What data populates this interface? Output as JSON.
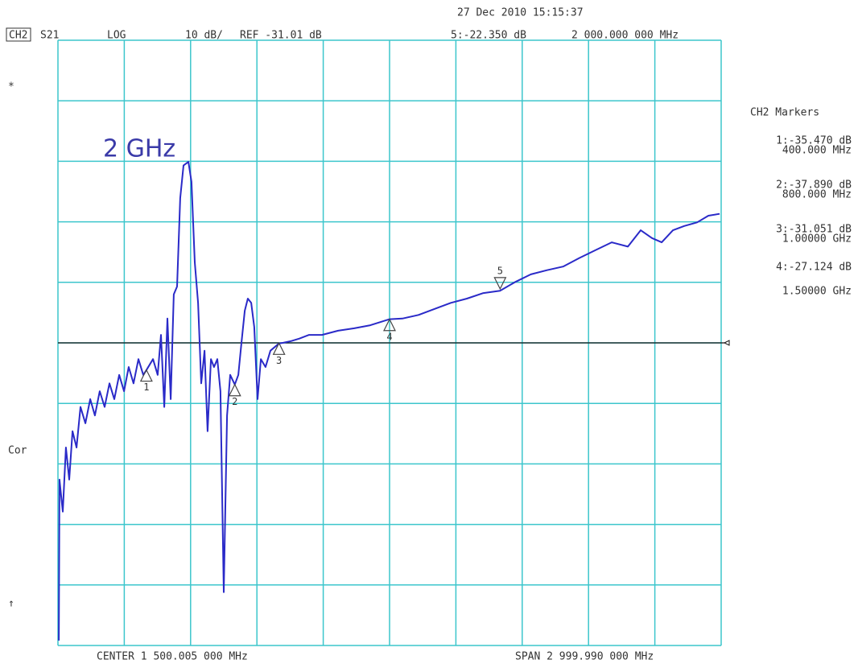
{
  "chart_data": {
    "type": "line",
    "date_time": "27 Dec 2010  15:15:37",
    "channel": "CH2",
    "parameter": "S21",
    "format": "LOG",
    "scale_label": "10 dB/",
    "reference": {
      "value": -31.01,
      "label": "REF -31.01 dB"
    },
    "center_label": "CENTER 1 500.005 000 MHz",
    "span_label": "SPAN 2 999.990 000 MHz",
    "markers_title": "CH2 Markers",
    "annotation": "2 GHz",
    "side_labels": [
      "*",
      "Cor",
      "↑"
    ],
    "grid": true,
    "color": "#2a2ac8",
    "xlim": [
      0.01,
      3000
    ],
    "ylim": [
      -81.01,
      18.99
    ],
    "x": [
      4,
      7,
      22,
      36,
      51,
      66,
      84,
      102,
      124,
      146,
      167,
      189,
      211,
      233,
      255,
      277,
      299,
      320,
      342,
      364,
      386,
      400,
      430,
      451,
      466,
      481,
      495,
      510,
      524,
      539,
      553,
      568,
      590,
      604,
      619,
      634,
      648,
      663,
      677,
      692,
      706,
      721,
      735,
      750,
      765,
      779,
      800,
      816,
      830,
      845,
      859,
      874,
      888,
      903,
      918,
      939,
      961,
      1000,
      1019,
      1056,
      1092,
      1136,
      1194,
      1267,
      1340,
      1413,
      1500,
      1558,
      1631,
      1704,
      1777,
      1850,
      1922,
      2000,
      2066,
      2139,
      2212,
      2285,
      2358,
      2431,
      2505,
      2578,
      2636,
      2687,
      2731,
      2782,
      2833,
      2891,
      2942,
      2993
    ],
    "values": [
      -80.2,
      -53.6,
      -58.9,
      -48.3,
      -53.6,
      -45.6,
      -48.3,
      -41.6,
      -44.3,
      -40.3,
      -43.0,
      -39.0,
      -41.6,
      -37.7,
      -40.3,
      -36.3,
      -39.0,
      -35.0,
      -37.7,
      -33.7,
      -36.3,
      -35.5,
      -33.7,
      -36.3,
      -29.7,
      -41.6,
      -27.0,
      -40.3,
      -23.0,
      -21.7,
      -7.1,
      -1.7,
      -1.1,
      -4.4,
      -17.7,
      -24.4,
      -37.7,
      -32.3,
      -45.6,
      -33.7,
      -35.0,
      -33.7,
      -39.0,
      -72.2,
      -43.0,
      -36.3,
      -37.9,
      -36.3,
      -31.0,
      -25.7,
      -23.7,
      -24.4,
      -28.4,
      -40.3,
      -33.7,
      -35.0,
      -32.3,
      -31.1,
      -31.0,
      -30.7,
      -30.3,
      -29.7,
      -29.7,
      -29.0,
      -28.6,
      -28.1,
      -27.1,
      -27.0,
      -26.4,
      -25.4,
      -24.4,
      -23.7,
      -22.8,
      -22.4,
      -21.0,
      -19.7,
      -19.0,
      -18.4,
      -17.0,
      -15.7,
      -14.4,
      -15.1,
      -12.4,
      -13.7,
      -14.4,
      -12.4,
      -11.7,
      -11.1,
      -10.0,
      -9.7
    ],
    "markers": [
      {
        "label": "1",
        "x": 400,
        "y": -35.47,
        "readout": "1:-35.470 dB",
        "freq": "400.000 MHz"
      },
      {
        "label": "2",
        "x": 800,
        "y": -37.89,
        "readout": "2:-37.890 dB",
        "freq": "800.000 MHz"
      },
      {
        "label": "3",
        "x": 1000,
        "y": -31.051,
        "readout": "3:-31.051 dB",
        "freq": "1.00000 GHz"
      },
      {
        "label": "4",
        "x": 1500,
        "y": -27.124,
        "readout": "4:-27.124 dB",
        "freq": "1.50000 GHz"
      },
      {
        "label": "5",
        "x": 2000,
        "y": -22.35,
        "readout": "5:-22.350 dB",
        "freq": "2 000.000 000 MHz"
      }
    ]
  }
}
